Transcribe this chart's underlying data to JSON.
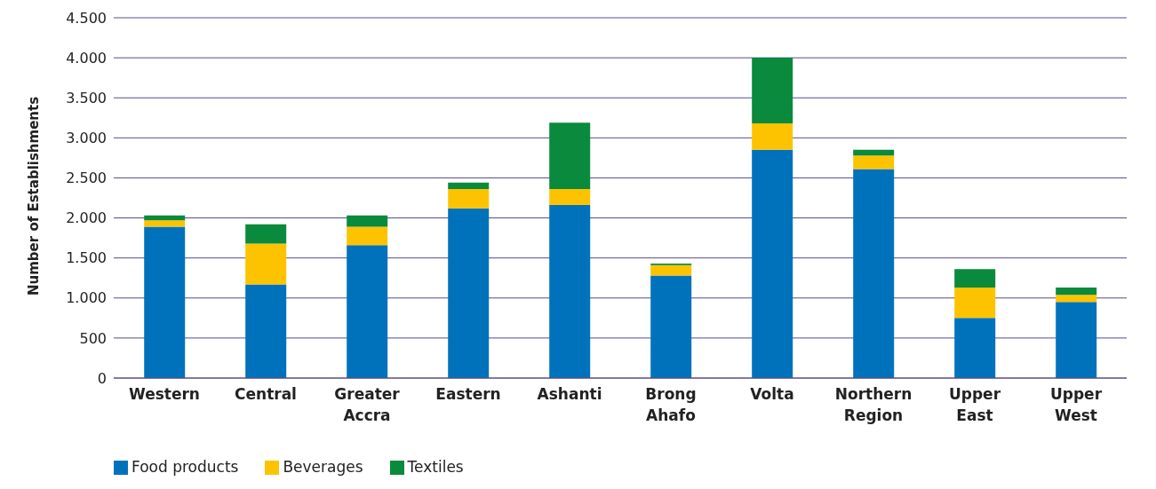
{
  "chart_data": {
    "type": "bar",
    "stacked": true,
    "ylabel": "Number of Establishments",
    "categories": [
      "Western",
      "Central",
      "Greater Accra",
      "Eastern",
      "Ashanti",
      "Brong Ahafo",
      "Volta",
      "Northern Region",
      "Upper East",
      "Upper West"
    ],
    "series": [
      {
        "name": "Food products",
        "color": "#0072bc",
        "values": [
          1890,
          1170,
          1660,
          2120,
          2160,
          1280,
          2850,
          2610,
          750,
          950
        ]
      },
      {
        "name": "Beverages",
        "color": "#fdc300",
        "values": [
          80,
          510,
          230,
          240,
          200,
          130,
          330,
          170,
          380,
          90
        ]
      },
      {
        "name": "Textiles",
        "color": "#0a8a3c",
        "values": [
          60,
          240,
          140,
          80,
          830,
          20,
          820,
          70,
          230,
          90
        ]
      }
    ],
    "ylim": [
      0,
      4500
    ],
    "yticks": [
      0,
      500,
      {
        "value": 1000,
        "label": "1.000"
      },
      {
        "value": 1500,
        "label": "1.500"
      },
      {
        "value": 2000,
        "label": "2.000"
      },
      {
        "value": 2500,
        "label": "2.500"
      },
      {
        "value": 3000,
        "label": "3.000"
      },
      {
        "value": 3500,
        "label": "3.500"
      },
      {
        "value": 4000,
        "label": "4.000"
      },
      {
        "value": 4500,
        "label": "4.500"
      }
    ],
    "grid": "y",
    "legend": "bottom left"
  }
}
